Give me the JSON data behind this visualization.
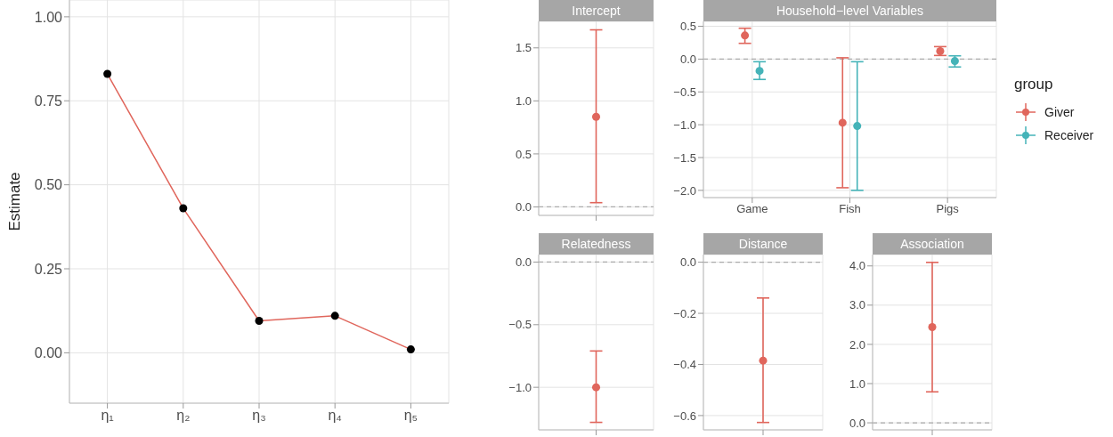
{
  "chart_data": [
    {
      "type": "line",
      "categories": [
        "η₁",
        "η₂",
        "η₃",
        "η₄",
        "η₅"
      ],
      "ylabel": "Estimate",
      "ylim": [
        -0.15,
        1.05
      ],
      "yticks": [
        {
          "value": 0,
          "label": "0.00"
        },
        {
          "value": 0.25,
          "label": "0.25"
        },
        {
          "value": 0.5,
          "label": "0.50"
        },
        {
          "value": 0.75,
          "label": "0.75"
        },
        {
          "value": 1,
          "label": "1.00"
        }
      ],
      "grid": true,
      "marker": "circle",
      "series": [
        {
          "color": "#e0665c",
          "colors": [
            "#000000",
            "#000000",
            "#000000",
            "#000000",
            "#000000"
          ],
          "values": [
            0.83,
            0.43,
            0.095,
            0.11,
            0.01
          ]
        }
      ]
    },
    {
      "type": "scatter",
      "title": "Intercept",
      "categories": [
        null
      ],
      "ylim": [
        -0.08,
        1.75
      ],
      "yticks": [
        {
          "value": 0,
          "label": "0.0"
        },
        {
          "value": 0.5,
          "label": "0.5"
        },
        {
          "value": 1,
          "label": "1.0"
        },
        {
          "value": 1.5,
          "label": "1.5"
        }
      ],
      "grid": true,
      "marker": "circle",
      "ref_lines": [
        {
          "axis": "y",
          "value": 0,
          "color": "#aaaaaa",
          "line_style": "dashed"
        }
      ],
      "series": [
        {
          "color": "#e0665c",
          "values": [
            0.85
          ],
          "errors": [
            [
              0.04,
              1.67
            ]
          ]
        }
      ]
    },
    {
      "type": "scatter",
      "title": "Household−level Variables",
      "categories": [
        "Game",
        "Fish",
        "Pigs"
      ],
      "ylim": [
        -2.11,
        0.575
      ],
      "yticks": [
        {
          "value": -2,
          "label": "−2.0"
        },
        {
          "value": -1.5,
          "label": "−1.5"
        },
        {
          "value": -1,
          "label": "−1.0"
        },
        {
          "value": -0.5,
          "label": "−0.5"
        },
        {
          "value": 0,
          "label": "0.0"
        },
        {
          "value": 0.5,
          "label": "0.5"
        }
      ],
      "grid": true,
      "marker": "circle",
      "legend": "right",
      "legend_title": "group",
      "ref_lines": [
        {
          "axis": "y",
          "value": 0,
          "color": "#aaaaaa",
          "line_style": "dashed"
        }
      ],
      "series": [
        {
          "name": "Giver",
          "color": "#e0665c",
          "values": [
            0.36,
            -0.97,
            0.12
          ],
          "errors": [
            [
              0.24,
              0.47
            ],
            [
              -1.96,
              0.02
            ],
            [
              0.055,
              0.19
            ]
          ]
        },
        {
          "name": "Receiver",
          "color": "#45b3b8",
          "values": [
            -0.18,
            -1.02,
            -0.03
          ],
          "errors": [
            [
              -0.31,
              -0.04
            ],
            [
              -2.0,
              -0.04
            ],
            [
              -0.12,
              0.05
            ]
          ]
        }
      ]
    },
    {
      "type": "scatter",
      "title": "Relatedness",
      "categories": [
        null
      ],
      "ylim": [
        -1.34,
        0.06
      ],
      "yticks": [
        {
          "value": -1,
          "label": "−1.0"
        },
        {
          "value": -0.5,
          "label": "−0.5"
        },
        {
          "value": 0,
          "label": "0.0"
        }
      ],
      "grid": true,
      "marker": "circle",
      "ref_lines": [
        {
          "axis": "y",
          "value": 0,
          "color": "#aaaaaa",
          "line_style": "dashed"
        }
      ],
      "series": [
        {
          "color": "#e0665c",
          "values": [
            -1.0
          ],
          "errors": [
            [
              -1.28,
              -0.71
            ]
          ]
        }
      ]
    },
    {
      "type": "scatter",
      "title": "Distance",
      "categories": [
        null
      ],
      "ylim": [
        -0.656,
        0.03
      ],
      "yticks": [
        {
          "value": -0.6,
          "label": "−0.6"
        },
        {
          "value": -0.4,
          "label": "−0.4"
        },
        {
          "value": -0.2,
          "label": "−0.2"
        },
        {
          "value": 0,
          "label": "0.0"
        }
      ],
      "grid": true,
      "marker": "circle",
      "ref_lines": [
        {
          "axis": "y",
          "value": 0,
          "color": "#aaaaaa",
          "line_style": "dashed"
        }
      ],
      "series": [
        {
          "color": "#e0665c",
          "values": [
            -0.385
          ],
          "errors": [
            [
              -0.627,
              -0.14
            ]
          ]
        }
      ]
    },
    {
      "type": "scatter",
      "title": "Association",
      "categories": [
        null
      ],
      "ylim": [
        -0.18,
        4.29
      ],
      "yticks": [
        {
          "value": 0,
          "label": "0.0"
        },
        {
          "value": 1,
          "label": "1.0"
        },
        {
          "value": 2,
          "label": "2.0"
        },
        {
          "value": 3,
          "label": "3.0"
        },
        {
          "value": 4,
          "label": "4.0"
        }
      ],
      "grid": true,
      "marker": "circle",
      "ref_lines": [
        {
          "axis": "y",
          "value": 0,
          "color": "#aaaaaa",
          "line_style": "dashed"
        }
      ],
      "series": [
        {
          "color": "#e0665c",
          "values": [
            2.44
          ],
          "errors": [
            [
              0.79,
              4.09
            ]
          ]
        }
      ]
    }
  ]
}
